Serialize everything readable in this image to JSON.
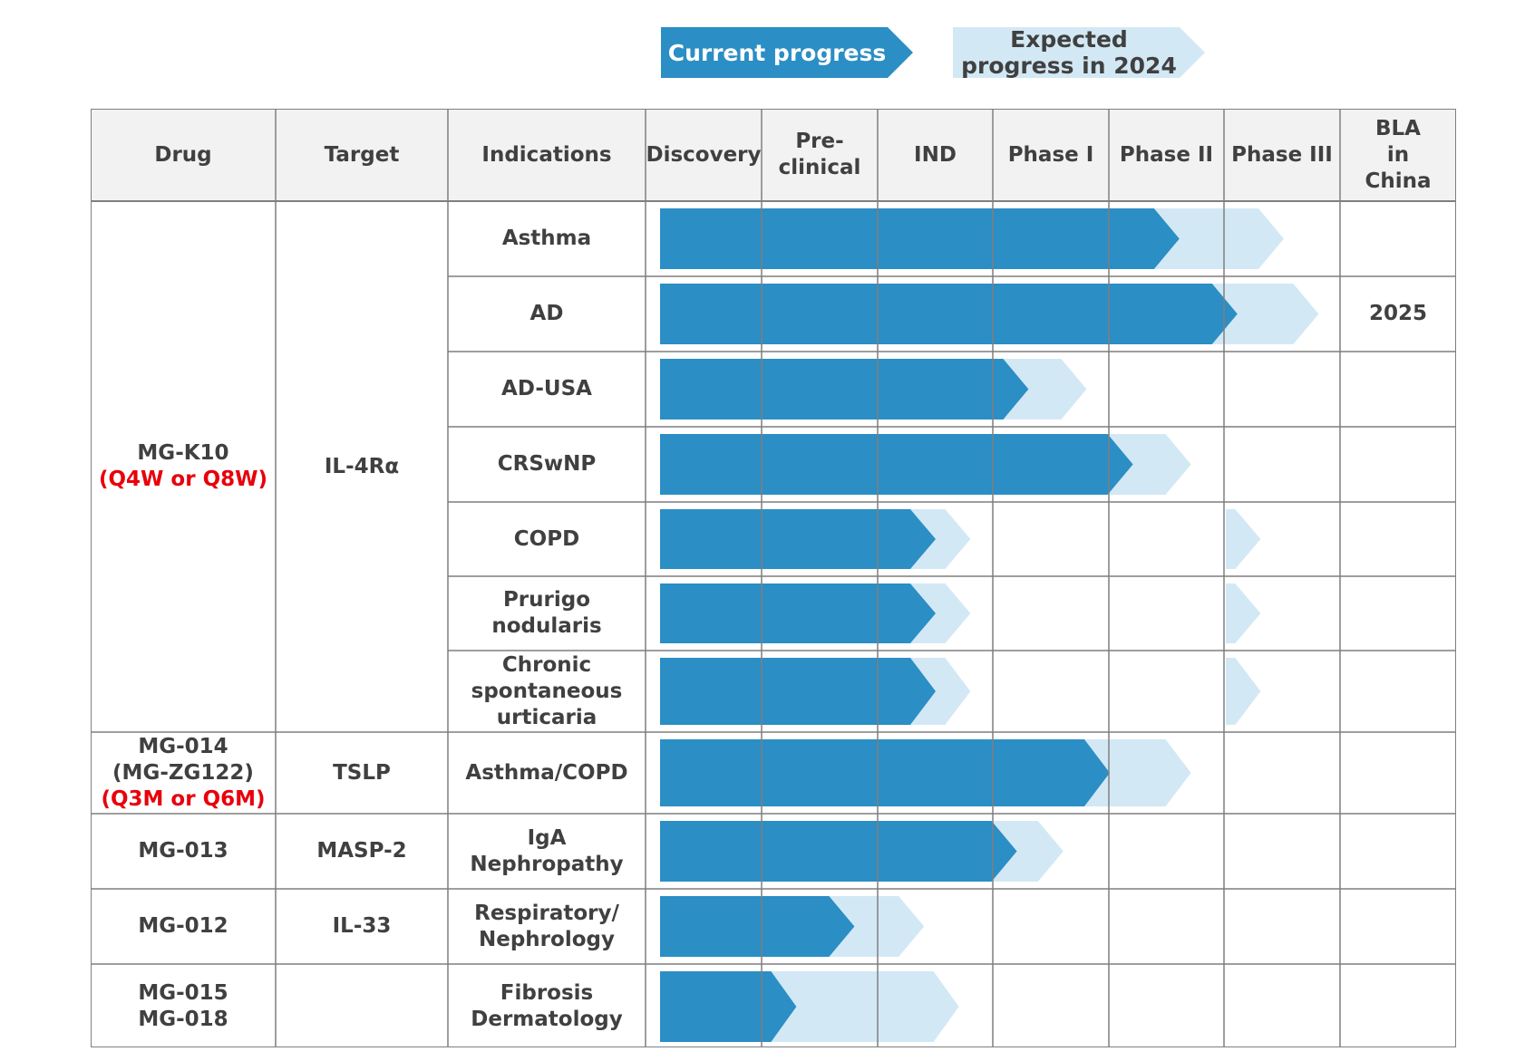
{
  "legend": {
    "current": "Current progress",
    "expected": "Expected progress in 2024"
  },
  "colors": {
    "current": "#2b8ec4",
    "expected": "#d3e8f5",
    "header_bg": "#f2f2f2",
    "grid": "#7f7f7f",
    "highlight": "#e8000b"
  },
  "headers": [
    "Drug",
    "Target",
    "Indications",
    "Discovery",
    "Pre-clinical",
    "IND",
    "Phase I",
    "Phase II",
    "Phase III",
    "BLA in China"
  ],
  "stages": [
    "Discovery",
    "Pre-clinical",
    "IND",
    "Phase I",
    "Phase II",
    "Phase III"
  ],
  "groups": [
    {
      "drug": "MG-K10",
      "dosing": "(Q4W or Q8W)",
      "target": "IL-4Rα"
    },
    {
      "drug": "MG-014\n(MG-ZG122)",
      "dosing": "(Q3M or Q6M)",
      "target": "TSLP"
    },
    {
      "drug": "MG-013",
      "dosing": "",
      "target": "MASP-2"
    },
    {
      "drug": "MG-012",
      "dosing": "",
      "target": "IL-33"
    },
    {
      "drug": "MG-015\nMG-018",
      "dosing": "",
      "target": ""
    }
  ],
  "rows": [
    {
      "indication": "Asthma",
      "group": 0,
      "current": 4.6,
      "expected": 5.5,
      "extra": null,
      "bla": ""
    },
    {
      "indication": "AD",
      "group": 0,
      "current": 5.1,
      "expected": 5.8,
      "extra": null,
      "bla": "2025"
    },
    {
      "indication": "AD-USA",
      "group": 0,
      "current": 3.3,
      "expected": 3.8,
      "extra": null,
      "bla": ""
    },
    {
      "indication": "CRSwNP",
      "group": 0,
      "current": 4.2,
      "expected": 4.7,
      "extra": null,
      "bla": ""
    },
    {
      "indication": "COPD",
      "group": 0,
      "current": 2.5,
      "expected": 2.8,
      "extra": [
        5.0,
        5.3
      ],
      "bla": ""
    },
    {
      "indication": "Prurigo nodularis",
      "group": 0,
      "current": 2.5,
      "expected": 2.8,
      "extra": [
        5.0,
        5.3
      ],
      "bla": ""
    },
    {
      "indication": "Chronic spontaneous urticaria",
      "group": 0,
      "current": 2.5,
      "expected": 2.8,
      "extra": [
        5.0,
        5.3
      ],
      "bla": ""
    },
    {
      "indication": "Asthma/COPD",
      "group": 1,
      "current": 4.0,
      "expected": 4.7,
      "extra": null,
      "bla": ""
    },
    {
      "indication": "IgA Nephropathy",
      "group": 2,
      "current": 3.2,
      "expected": 3.6,
      "extra": null,
      "bla": ""
    },
    {
      "indication": "Respiratory/ Nephrology",
      "group": 3,
      "current": 1.8,
      "expected": 2.4,
      "extra": null,
      "bla": ""
    },
    {
      "indication": "Fibrosis Dermatology",
      "group": 4,
      "current": 1.3,
      "expected": 2.7,
      "extra": null,
      "bla": ""
    }
  ]
}
